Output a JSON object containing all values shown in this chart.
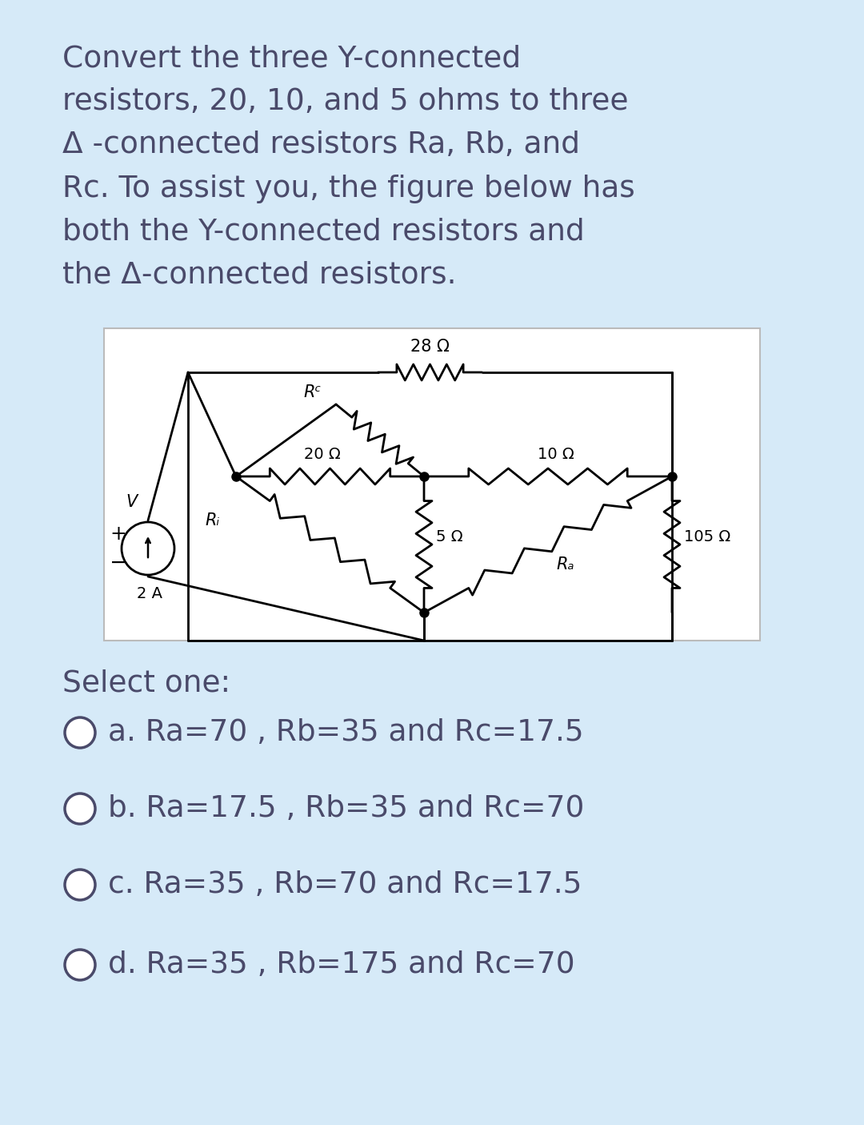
{
  "bg_color": "#d6eaf8",
  "panel_bg": "#ffffff",
  "text_color": "#4a4a6a",
  "question_text": "Convert the three Y-connected\nresistors, 20, 10, and 5 ohms to three\nΔ -connected resistors Ra, Rb, and\nRc. To assist you, the figure below has\nboth the Y-connected resistors and\nthe Δ-connected resistors.",
  "select_text": "Select one:",
  "options": [
    "a. Ra=70 , Rb=35 and Rc=17.5",
    "b. Ra=17.5 , Rb=35 and Rc=70",
    "c. Ra=35 , Rb=70 and Rc=17.5",
    "d. Ra=35 , Rb=175 and Rc=70"
  ],
  "label_28": "28 Ω",
  "label_20": "20 Ω",
  "label_10": "10 Ω",
  "label_5": "5 Ω",
  "label_105": "105 Ω",
  "label_Ra": "Rₐ",
  "label_Rb": "Rᵢ",
  "label_Rc": "Rᶜ",
  "label_2A": "2 A",
  "label_V": "V",
  "label_plus": "+",
  "label_minus": "−"
}
